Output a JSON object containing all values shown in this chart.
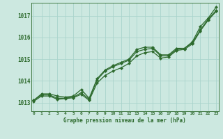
{
  "title": "Graphe pression niveau de la mer (hPa)",
  "background_color": "#cce8e0",
  "grid_color": "#aad4cc",
  "line_color": "#2d6a2d",
  "ylim": [
    1012.6,
    1017.6
  ],
  "yticks": [
    1013,
    1014,
    1015,
    1016,
    1017
  ],
  "xlim": [
    -0.3,
    23.3
  ],
  "x_labels": [
    "0",
    "1",
    "2",
    "3",
    "4",
    "5",
    "6",
    "7",
    "8",
    "9",
    "10",
    "11",
    "12",
    "13",
    "14",
    "15",
    "16",
    "17",
    "18",
    "19",
    "20",
    "21",
    "22",
    "23"
  ],
  "series1": [
    1013.1,
    1013.4,
    1013.4,
    1013.3,
    1013.25,
    1013.3,
    1013.6,
    1013.2,
    1014.1,
    1014.5,
    1014.7,
    1014.85,
    1015.0,
    1015.45,
    1015.55,
    1015.55,
    1015.2,
    1015.2,
    1015.5,
    1015.5,
    1015.8,
    1016.5,
    1016.9,
    1017.4
  ],
  "series2": [
    1013.1,
    1013.35,
    1013.35,
    1013.2,
    1013.2,
    1013.25,
    1013.45,
    1013.15,
    1014.05,
    1014.45,
    1014.65,
    1014.8,
    1014.95,
    1015.35,
    1015.45,
    1015.5,
    1015.15,
    1015.15,
    1015.45,
    1015.5,
    1015.75,
    1016.35,
    1016.85,
    1017.25
  ],
  "series3": [
    1013.05,
    1013.3,
    1013.3,
    1013.15,
    1013.18,
    1013.22,
    1013.38,
    1013.1,
    1013.9,
    1014.25,
    1014.45,
    1014.6,
    1014.8,
    1015.15,
    1015.3,
    1015.35,
    1015.05,
    1015.1,
    1015.4,
    1015.45,
    1015.7,
    1016.3,
    1016.8,
    1017.2
  ],
  "marker_size": 2.2,
  "line_width": 0.9
}
